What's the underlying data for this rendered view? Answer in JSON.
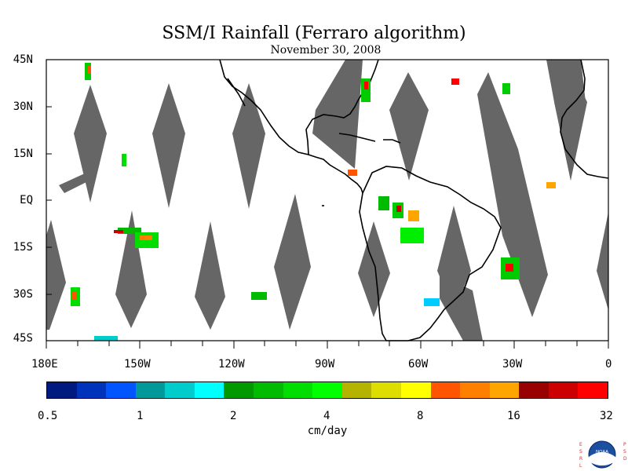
{
  "title": "SSM/I Rainfall (Ferraro algorithm)",
  "subtitle": "November 30, 2008",
  "lat_labels": [
    "45N",
    "30N",
    "15N",
    "EQ",
    "15S",
    "30S",
    "45S"
  ],
  "lon_labels": [
    "180E",
    "150W",
    "120W",
    "90W",
    "60W",
    "30W",
    "0"
  ],
  "colorbar": {
    "colors": [
      "#001a80",
      "#0033bb",
      "#0055ff",
      "#009999",
      "#00cccc",
      "#00ffff",
      "#009900",
      "#00bb00",
      "#00dd00",
      "#00ff00",
      "#b3b300",
      "#dddd00",
      "#ffff00",
      "#ff5500",
      "#ff8000",
      "#ffa500",
      "#990000",
      "#cc0000",
      "#ff0000"
    ],
    "labels": [
      "0.5",
      "1",
      "2",
      "4",
      "8",
      "16",
      "32"
    ],
    "units": "cm/day"
  },
  "logo": {
    "left_text": "ESRL",
    "right_text": "PSD",
    "center_text": "NOAA"
  },
  "colors": {
    "swath_gap": "#666666",
    "coast": "#000000"
  }
}
